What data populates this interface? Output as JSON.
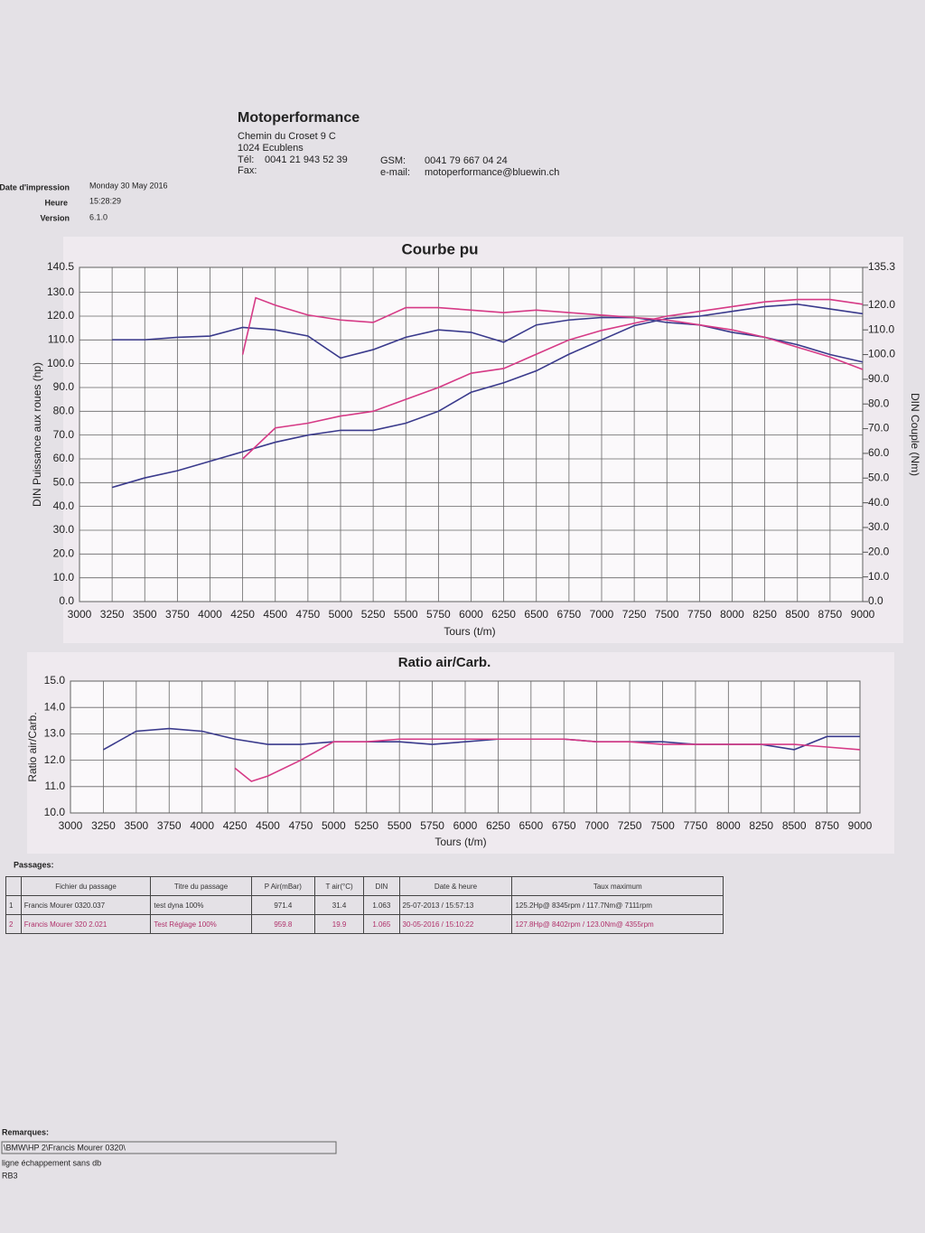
{
  "header": {
    "company": "Motoperformance",
    "address1": "Chemin du Croset 9 C",
    "address2": "1024 Ecublens",
    "tel_label": "Tél:",
    "tel": "0041 21 943 52 39",
    "fax_label": "Fax:",
    "gsm_label": "GSM:",
    "gsm": "0041 79 667 04 24",
    "email_label": "e-mail:",
    "email": "motoperformance@bluewin.ch"
  },
  "meta": [
    {
      "label": "Date d'impression",
      "value": "Monday 30 May 2016"
    },
    {
      "label": "Heure",
      "value": "15:28:29"
    },
    {
      "label": "Version",
      "value": "6.1.0"
    }
  ],
  "chart_data": [
    {
      "type": "line",
      "title": "Courbe pu",
      "xlabel": "Tours (t/m)",
      "ylabel": "DIN Puissance aux roues (hp)",
      "y2label": "DIN Couple (Nm)",
      "grid": true,
      "xlim": [
        3000,
        9000
      ],
      "xticks": [
        3000,
        3250,
        3500,
        3750,
        4000,
        4250,
        4500,
        4750,
        5000,
        5250,
        5500,
        5750,
        6000,
        6250,
        6500,
        6750,
        7000,
        7250,
        7500,
        7750,
        8000,
        8250,
        8500,
        8750,
        9000
      ],
      "ylim": [
        0,
        140.5
      ],
      "yticks": [
        {
          "value": 0,
          "label": "0.0"
        },
        {
          "value": 10,
          "label": "10.0"
        },
        {
          "value": 20,
          "label": "20.0"
        },
        {
          "value": 30,
          "label": "30.0"
        },
        {
          "value": 40,
          "label": "40.0"
        },
        {
          "value": 50,
          "label": "50.0"
        },
        {
          "value": 60,
          "label": "60.0"
        },
        {
          "value": 70,
          "label": "70.0"
        },
        {
          "value": 80,
          "label": "80.0"
        },
        {
          "value": 90,
          "label": "90.0"
        },
        {
          "value": 100,
          "label": "100.0"
        },
        {
          "value": 110,
          "label": "110.0"
        },
        {
          "value": 120,
          "label": "120.0"
        },
        {
          "value": 130,
          "label": "130.0"
        },
        140.5
      ],
      "y2lim": [
        0,
        135.3
      ],
      "y2ticks": [
        {
          "value": 0,
          "label": "0.0"
        },
        {
          "value": 10,
          "label": "10.0"
        },
        {
          "value": 20,
          "label": "20.0"
        },
        {
          "value": 30,
          "label": "30.0"
        },
        {
          "value": 40,
          "label": "40.0"
        },
        {
          "value": 50,
          "label": "50.0"
        },
        {
          "value": 60,
          "label": "60.0"
        },
        {
          "value": 70,
          "label": "70.0"
        },
        {
          "value": 80,
          "label": "80.0"
        },
        {
          "value": 90,
          "label": "90.0"
        },
        {
          "value": 100,
          "label": "100.0"
        },
        {
          "value": 110,
          "label": "110.0"
        },
        {
          "value": 120,
          "label": "120.0"
        },
        135.3
      ],
      "series": [
        {
          "color": "#3a3a8c",
          "x": [
            3250,
            3500,
            3750,
            4000,
            4250,
            4500,
            4750,
            5000,
            5250,
            5500,
            5750,
            6000,
            6250,
            6500,
            6750,
            7000,
            7250,
            7500,
            7750,
            8000,
            8250,
            8500,
            8750,
            9000
          ],
          "values": [
            48,
            52,
            55,
            59,
            63,
            67,
            70,
            72,
            72,
            75,
            80,
            88,
            92,
            97,
            104,
            110,
            116,
            119,
            120,
            122,
            124,
            125,
            123,
            121
          ]
        },
        {
          "color": "#d63a86",
          "x": [
            4250,
            4500,
            4750,
            5000,
            5250,
            5500,
            5750,
            6000,
            6250,
            6500,
            6750,
            7000,
            7250,
            7500,
            7750,
            8000,
            8250,
            8500,
            8750,
            9000
          ],
          "values": [
            60,
            73,
            75,
            78,
            80,
            85,
            90,
            96,
            98,
            104,
            110,
            114,
            117,
            120,
            122,
            124,
            126,
            127,
            127,
            125
          ]
        },
        {
          "color": "#3a3a8c",
          "axis": "y2",
          "x": [
            3250,
            3500,
            3750,
            4000,
            4250,
            4500,
            4750,
            5000,
            5250,
            5500,
            5750,
            6000,
            6250,
            6500,
            6750,
            7000,
            7250,
            7500,
            7750,
            8000,
            8250,
            8500,
            8750,
            9000
          ],
          "values": [
            106,
            106,
            107,
            107.5,
            111,
            110,
            107.5,
            98.6,
            102,
            107,
            110,
            109,
            105,
            112,
            114,
            115,
            115,
            113,
            112,
            109,
            107,
            104,
            100,
            97
          ]
        },
        {
          "color": "#d63a86",
          "axis": "y2",
          "x": [
            4250,
            4350,
            4500,
            4750,
            5000,
            5250,
            5500,
            5750,
            6000,
            6250,
            6500,
            6750,
            7000,
            7250,
            7500,
            7750,
            8000,
            8250,
            8500,
            8750,
            9000
          ],
          "values": [
            100,
            123,
            120,
            116,
            114,
            113,
            119,
            119,
            118,
            117,
            118,
            117,
            116,
            115,
            114,
            112,
            110,
            107,
            103,
            99,
            94
          ]
        }
      ]
    },
    {
      "type": "line",
      "title": "Ratio air/Carb.",
      "xlabel": "Tours (t/m)",
      "ylabel": "Ratio air/Carb.",
      "grid": true,
      "xlim": [
        3000,
        9000
      ],
      "xticks": [
        3000,
        3250,
        3500,
        3750,
        4000,
        4250,
        4500,
        4750,
        5000,
        5250,
        5500,
        5750,
        6000,
        6250,
        6500,
        6750,
        7000,
        7250,
        7500,
        7750,
        8000,
        8250,
        8500,
        8750,
        9000
      ],
      "ylim": [
        10,
        15
      ],
      "yticks": [
        {
          "value": 10,
          "label": "10.0"
        },
        {
          "value": 11,
          "label": "11.0"
        },
        {
          "value": 12,
          "label": "12.0"
        },
        {
          "value": 13,
          "label": "13.0"
        },
        {
          "value": 14,
          "label": "14.0"
        },
        {
          "value": 15,
          "label": "15.0"
        }
      ],
      "series": [
        {
          "color": "#3a3a8c",
          "x": [
            3250,
            3500,
            3750,
            4000,
            4250,
            4500,
            4750,
            5000,
            5250,
            5500,
            5750,
            6000,
            6250,
            6500,
            6750,
            7000,
            7250,
            7500,
            7750,
            8000,
            8250,
            8500,
            8750,
            9000
          ],
          "values": [
            12.4,
            13.1,
            13.2,
            13.1,
            12.8,
            12.6,
            12.6,
            12.7,
            12.7,
            12.7,
            12.6,
            12.7,
            12.8,
            12.8,
            12.8,
            12.7,
            12.7,
            12.7,
            12.6,
            12.6,
            12.6,
            12.4,
            12.9,
            12.9
          ]
        },
        {
          "color": "#d63a86",
          "x": [
            4250,
            4375,
            4500,
            4750,
            5000,
            5250,
            5500,
            5750,
            6000,
            6250,
            6500,
            6750,
            7000,
            7250,
            7500,
            7750,
            8000,
            8250,
            8500,
            8750,
            9000
          ],
          "values": [
            11.7,
            11.2,
            11.4,
            12.0,
            12.7,
            12.7,
            12.8,
            12.8,
            12.8,
            12.8,
            12.8,
            12.8,
            12.7,
            12.7,
            12.6,
            12.6,
            12.6,
            12.6,
            12.6,
            12.5,
            12.4
          ]
        }
      ]
    }
  ],
  "passages": {
    "title": "Passages:",
    "columns": [
      "",
      "Fichier du passage",
      "Titre du passage",
      "P Air(mBar)",
      "T air(°C)",
      "DIN",
      "Date & heure",
      "Taux maximum"
    ],
    "rows": [
      [
        "1",
        "Francis Mourer 0320.037",
        "test dyna 100%",
        "971.4",
        "31.4",
        "1.063",
        "25-07-2013 / 15:57:13",
        "125.2Hp@ 8345rpm / 117.7Nm@ 7111rpm"
      ],
      [
        "2",
        "Francis Mourer 320 2.021",
        "Test Réglage  100%",
        "959.8",
        "19.9",
        "1.065",
        "30-05-2016 / 15:10:22",
        "127.8Hp@ 8402rpm / 123.0Nm@ 4355rpm"
      ]
    ]
  },
  "remarks": {
    "title": "Remarques:",
    "lines": [
      "\\BMW\\HP 2\\Francis Mourer 0320\\",
      "ligne échappement sans db",
      "RB3"
    ]
  }
}
